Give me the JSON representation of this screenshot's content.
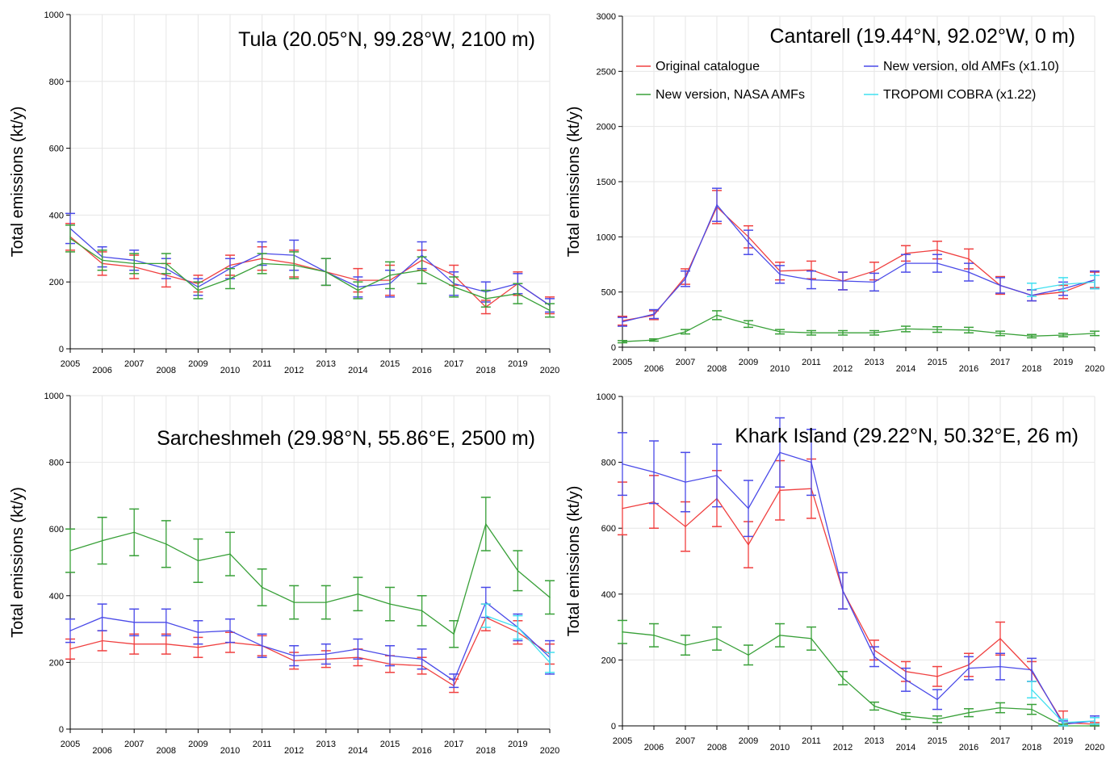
{
  "chart_data": [
    {
      "type": "line",
      "title": "Tula (20.05°N, 99.28°W, 2100 m)",
      "ylabel": "Total emissions (kt/y)",
      "ylim": [
        0,
        1000
      ],
      "yticks": [
        0,
        200,
        400,
        600,
        800,
        1000
      ],
      "x": [
        2005,
        2006,
        2007,
        2008,
        2009,
        2010,
        2011,
        2012,
        2013,
        2014,
        2015,
        2016,
        2017,
        2018,
        2019,
        2020
      ],
      "series": [
        {
          "name": "Original catalogue",
          "color": "#f04040",
          "values": [
            335,
            255,
            245,
            220,
            195,
            250,
            270,
            255,
            230,
            205,
            205,
            265,
            220,
            125,
            195,
            130
          ],
          "errors": [
            40,
            35,
            35,
            35,
            25,
            30,
            35,
            40,
            40,
            35,
            45,
            30,
            30,
            20,
            35,
            25
          ]
        },
        {
          "name": "New version, old AMFs (x1.10)",
          "color": "#4a4ae8",
          "values": [
            360,
            275,
            265,
            240,
            185,
            240,
            285,
            280,
            230,
            185,
            195,
            280,
            195,
            170,
            195,
            130
          ],
          "errors": [
            45,
            30,
            30,
            30,
            25,
            30,
            35,
            45,
            40,
            30,
            40,
            40,
            35,
            30,
            30,
            20
          ]
        },
        {
          "name": "New version, NASA AMFs",
          "color": "#38a038",
          "values": [
            330,
            265,
            255,
            255,
            175,
            210,
            255,
            250,
            230,
            175,
            220,
            235,
            185,
            150,
            165,
            115
          ],
          "errors": [
            40,
            30,
            30,
            30,
            25,
            30,
            30,
            40,
            40,
            25,
            40,
            40,
            30,
            25,
            30,
            20
          ]
        }
      ]
    },
    {
      "type": "line",
      "title": "Cantarell (19.44°N, 92.02°W, 0 m)",
      "ylabel": "Total emissions (kt/y)",
      "ylim": [
        0,
        3000
      ],
      "yticks": [
        0,
        500,
        1000,
        1500,
        2000,
        2500,
        3000
      ],
      "x": [
        2005,
        2006,
        2007,
        2008,
        2009,
        2010,
        2011,
        2012,
        2013,
        2014,
        2015,
        2016,
        2017,
        2018,
        2019,
        2020
      ],
      "legend": [
        "Original catalogue",
        "New version, old AMFs (x1.10)",
        "New version, NASA AMFs",
        "TROPOMI COBRA (x1.22)"
      ],
      "series": [
        {
          "name": "Original catalogue",
          "color": "#f04040",
          "values": [
            240,
            290,
            640,
            1270,
            1000,
            690,
            700,
            600,
            690,
            850,
            880,
            800,
            560,
            470,
            500,
            610
          ],
          "errors": [
            40,
            40,
            70,
            150,
            100,
            80,
            80,
            80,
            80,
            70,
            80,
            90,
            80,
            50,
            60,
            70
          ]
        },
        {
          "name": "New version, old AMFs (x1.10)",
          "color": "#4a4ae8",
          "values": [
            230,
            300,
            620,
            1290,
            950,
            660,
            610,
            600,
            590,
            760,
            760,
            680,
            560,
            470,
            530,
            610
          ],
          "errors": [
            40,
            40,
            70,
            150,
            110,
            80,
            80,
            80,
            80,
            80,
            80,
            80,
            70,
            50,
            60,
            80
          ]
        },
        {
          "name": "New version, NASA AMFs",
          "color": "#38a038",
          "values": [
            50,
            65,
            140,
            290,
            210,
            140,
            130,
            130,
            130,
            165,
            160,
            155,
            125,
            100,
            110,
            125
          ],
          "errors": [
            10,
            10,
            20,
            40,
            30,
            20,
            20,
            20,
            20,
            25,
            25,
            25,
            20,
            15,
            15,
            20
          ]
        },
        {
          "name": "TROPOMI COBRA (x1.22)",
          "color": "#40e0f0",
          "values": [
            null,
            null,
            null,
            null,
            null,
            null,
            null,
            null,
            null,
            null,
            null,
            null,
            null,
            520,
            570,
            590
          ],
          "errors": [
            null,
            null,
            null,
            null,
            null,
            null,
            null,
            null,
            null,
            null,
            null,
            null,
            null,
            60,
            60,
            60
          ]
        }
      ]
    },
    {
      "type": "line",
      "title": "Sarcheshmeh (29.98°N, 55.86°E, 2500 m)",
      "ylabel": "Total emissions (kt/y)",
      "ylim": [
        0,
        1000
      ],
      "yticks": [
        0,
        200,
        400,
        600,
        800,
        1000
      ],
      "x": [
        2005,
        2006,
        2007,
        2008,
        2009,
        2010,
        2011,
        2012,
        2013,
        2014,
        2015,
        2016,
        2017,
        2018,
        2019,
        2020
      ],
      "series": [
        {
          "name": "Original catalogue",
          "color": "#f04040",
          "values": [
            240,
            265,
            255,
            255,
            245,
            260,
            250,
            205,
            210,
            215,
            195,
            190,
            130,
            335,
            290,
            225
          ],
          "errors": [
            30,
            30,
            30,
            30,
            30,
            30,
            30,
            25,
            25,
            25,
            25,
            25,
            20,
            40,
            35,
            30
          ]
        },
        {
          "name": "New version, old AMFs (x1.10)",
          "color": "#4a4ae8",
          "values": [
            295,
            335,
            320,
            320,
            290,
            295,
            250,
            220,
            225,
            240,
            220,
            210,
            145,
            380,
            305,
            215
          ],
          "errors": [
            35,
            40,
            40,
            40,
            35,
            35,
            35,
            30,
            30,
            30,
            30,
            30,
            20,
            45,
            40,
            50
          ]
        },
        {
          "name": "New version, NASA AMFs",
          "color": "#38a038",
          "values": [
            535,
            565,
            590,
            555,
            505,
            525,
            425,
            380,
            380,
            405,
            375,
            355,
            285,
            615,
            475,
            395
          ],
          "errors": [
            65,
            70,
            70,
            70,
            65,
            65,
            55,
            50,
            50,
            50,
            50,
            45,
            40,
            80,
            60,
            50
          ]
        },
        {
          "name": "TROPOMI COBRA (x1.22)",
          "color": "#40e0f0",
          "values": [
            null,
            null,
            null,
            null,
            null,
            null,
            null,
            null,
            null,
            null,
            null,
            null,
            null,
            340,
            305,
            200
          ],
          "errors": [
            null,
            null,
            null,
            null,
            null,
            null,
            null,
            null,
            null,
            null,
            null,
            null,
            null,
            35,
            35,
            30
          ]
        }
      ]
    },
    {
      "type": "line",
      "title": "Khark Island (29.22°N, 50.32°E, 26 m)",
      "ylabel": "Total emissions (kt/y)",
      "ylim": [
        0,
        1000
      ],
      "yticks": [
        0,
        200,
        400,
        600,
        800,
        1000
      ],
      "x": [
        2005,
        2006,
        2007,
        2008,
        2009,
        2010,
        2011,
        2012,
        2013,
        2014,
        2015,
        2016,
        2017,
        2018,
        2019,
        2020
      ],
      "series": [
        {
          "name": "Original catalogue",
          "color": "#f04040",
          "values": [
            660,
            680,
            605,
            690,
            550,
            715,
            720,
            410,
            230,
            165,
            150,
            185,
            265,
            165,
            10,
            5
          ],
          "errors": [
            80,
            80,
            75,
            85,
            70,
            90,
            90,
            55,
            30,
            30,
            30,
            35,
            50,
            30,
            35,
            5
          ]
        },
        {
          "name": "New version, old AMFs (x1.10)",
          "color": "#4a4ae8",
          "values": [
            795,
            770,
            740,
            760,
            660,
            830,
            800,
            410,
            210,
            140,
            80,
            175,
            180,
            170,
            5,
            15
          ],
          "errors": [
            95,
            95,
            90,
            95,
            85,
            105,
            100,
            55,
            30,
            35,
            30,
            35,
            40,
            35,
            10,
            15
          ]
        },
        {
          "name": "New version, NASA AMFs",
          "color": "#38a038",
          "values": [
            285,
            275,
            245,
            265,
            215,
            275,
            265,
            145,
            60,
            30,
            20,
            40,
            55,
            50,
            0,
            0
          ],
          "errors": [
            35,
            35,
            30,
            35,
            30,
            35,
            35,
            20,
            12,
            10,
            10,
            12,
            15,
            15,
            5,
            5
          ]
        },
        {
          "name": "TROPOMI COBRA (x1.22)",
          "color": "#40e0f0",
          "values": [
            null,
            null,
            null,
            null,
            null,
            null,
            null,
            null,
            null,
            null,
            null,
            null,
            null,
            110,
            10,
            15
          ],
          "errors": [
            null,
            null,
            null,
            null,
            null,
            null,
            null,
            null,
            null,
            null,
            null,
            null,
            null,
            25,
            10,
            10
          ]
        }
      ]
    }
  ]
}
